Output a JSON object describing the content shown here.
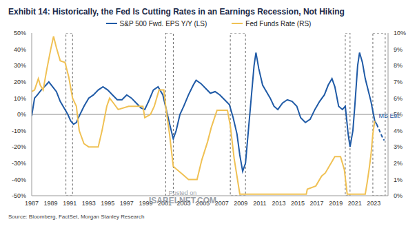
{
  "chart_data": {
    "type": "line",
    "title": "Exhibit 14:  Historically, the Fed Is Cutting Rates in an Earnings Recession, Not Hiking",
    "source": "Source: Bloomberg, FactSet, Morgan Stanley Research",
    "watermark": [
      "Posted on",
      "ISABELNET.COM"
    ],
    "xlim": [
      1987,
      2024.5
    ],
    "xticks": [
      1987,
      1989,
      1991,
      1993,
      1995,
      1997,
      1999,
      2001,
      2003,
      2005,
      2007,
      2009,
      2011,
      2013,
      2015,
      2017,
      2019,
      2021,
      2023
    ],
    "ylim": [
      -50,
      50
    ],
    "yticks": [
      {
        "value": -50,
        "label": "-50%"
      },
      {
        "value": -40,
        "label": "-40%"
      },
      {
        "value": -30,
        "label": "-30%"
      },
      {
        "value": -20,
        "label": "-20%"
      },
      {
        "value": -10,
        "label": "-10%"
      },
      {
        "value": 0,
        "label": "0%"
      },
      {
        "value": 10,
        "label": "10%"
      },
      {
        "value": 20,
        "label": "20%"
      },
      {
        "value": 30,
        "label": "30%"
      },
      {
        "value": 40,
        "label": "40%"
      },
      {
        "value": 50,
        "label": "50%"
      }
    ],
    "y2lim": [
      0,
      10
    ],
    "y2ticks": [
      {
        "value": 0,
        "label": "0%"
      },
      {
        "value": 1,
        "label": "1%"
      },
      {
        "value": 2,
        "label": "2%"
      },
      {
        "value": 3,
        "label": "3%"
      },
      {
        "value": 4,
        "label": "4%"
      },
      {
        "value": 5,
        "label": "5%"
      },
      {
        "value": 6,
        "label": "6%"
      },
      {
        "value": 7,
        "label": "7%"
      },
      {
        "value": 8,
        "label": "8%"
      },
      {
        "value": 9,
        "label": "9%"
      },
      {
        "value": 10,
        "label": "10%"
      }
    ],
    "grid": false,
    "legend": "top",
    "zero_line": 0,
    "periods": [
      [
        1990.6,
        1991.3
      ],
      [
        2001.1,
        2001.9
      ],
      [
        2007.9,
        2009.5
      ],
      [
        2020.0,
        2020.5
      ],
      [
        2022.9,
        2024.2
      ]
    ],
    "series": [
      {
        "name": "S&P 500 Fwd. EPS Y/Y (LS)",
        "color": "#1f5aa6",
        "line_style": "solid",
        "x": [
          1987.0,
          1987.3,
          1987.6,
          1988.0,
          1988.5,
          1988.8,
          1989.2,
          1989.6,
          1990.0,
          1990.4,
          1990.8,
          1991.1,
          1991.4,
          1991.7,
          1992.0,
          1992.5,
          1993.0,
          1993.5,
          1994.0,
          1994.5,
          1995.0,
          1995.5,
          1996.0,
          1996.5,
          1997.0,
          1997.5,
          1998.0,
          1998.5,
          1998.9,
          1999.3,
          1999.8,
          2000.3,
          2000.8,
          2001.2,
          2001.6,
          2001.9,
          2002.2,
          2002.6,
          2003.0,
          2003.5,
          2004.0,
          2004.3,
          2004.8,
          2005.3,
          2005.8,
          2006.3,
          2006.8,
          2007.3,
          2007.8,
          2008.2,
          2008.6,
          2008.9,
          2009.2,
          2009.5,
          2009.8,
          2010.1,
          2010.4,
          2010.6,
          2010.9,
          2011.3,
          2011.7,
          2012.1,
          2012.5,
          2012.9,
          2013.4,
          2013.9,
          2014.4,
          2014.9,
          2015.3,
          2015.8,
          2016.3,
          2016.8,
          2017.3,
          2017.8,
          2018.2,
          2018.6,
          2018.9,
          2019.3,
          2019.7,
          2020.0,
          2020.3,
          2020.5,
          2020.8,
          2021.0,
          2021.3,
          2021.5,
          2021.8,
          2022.1,
          2022.4,
          2022.7,
          2022.9,
          2023.1,
          2023.3
        ],
        "values": [
          -1,
          10,
          12,
          15,
          18,
          20,
          17,
          14,
          8,
          4,
          0,
          -4,
          -6,
          -5,
          -1,
          5,
          10,
          12,
          15,
          17,
          15,
          12,
          9,
          9,
          12,
          10,
          7,
          4,
          3,
          8,
          15,
          17,
          12,
          2,
          -8,
          -15,
          -10,
          0,
          5,
          12,
          18,
          21,
          19,
          16,
          13,
          14,
          12,
          9,
          6,
          -2,
          -12,
          -25,
          -35,
          -30,
          -10,
          10,
          30,
          38,
          28,
          18,
          14,
          10,
          5,
          3,
          7,
          9,
          8,
          5,
          -2,
          -5,
          -3,
          3,
          8,
          12,
          18,
          22,
          17,
          5,
          3,
          5,
          -12,
          -20,
          -10,
          5,
          30,
          38,
          32,
          22,
          15,
          8,
          2,
          -4,
          -6
        ]
      },
      {
        "name": "Fed Funds Rate (RS)",
        "color": "#f0c154",
        "line_style": "solid",
        "axis": "y2",
        "x": [
          1987.0,
          1987.3,
          1987.7,
          1987.9,
          1988.2,
          1988.6,
          1989.0,
          1989.3,
          1989.6,
          1990.0,
          1990.5,
          1990.9,
          1991.3,
          1991.7,
          1992.0,
          1992.5,
          1993.0,
          1994.0,
          1994.4,
          1994.9,
          1995.2,
          1995.6,
          1996.1,
          1997.2,
          1998.7,
          1998.9,
          1999.5,
          1999.9,
          2000.4,
          2000.9,
          2001.1,
          2001.5,
          2001.9,
          2002.9,
          2003.5,
          2004.4,
          2004.9,
          2005.5,
          2005.9,
          2006.5,
          2007.6,
          2007.9,
          2008.3,
          2008.9,
          2015.9,
          2016.0,
          2016.9,
          2017.5,
          2017.9,
          2018.5,
          2018.9,
          2019.5,
          2019.9,
          2020.2,
          2022.1,
          2022.3,
          2022.5,
          2022.7,
          2022.9,
          2023.1
        ],
        "values": [
          6.4,
          6.5,
          7.2,
          6.8,
          6.5,
          7.8,
          9.0,
          9.8,
          9.1,
          8.3,
          8.2,
          7.3,
          6.0,
          5.5,
          4.0,
          3.2,
          3.0,
          3.0,
          4.0,
          5.5,
          6.0,
          5.7,
          5.3,
          5.5,
          5.5,
          4.8,
          5.0,
          5.5,
          6.5,
          6.5,
          5.5,
          3.8,
          1.8,
          1.3,
          1.0,
          1.0,
          2.2,
          3.3,
          4.2,
          5.25,
          5.25,
          4.3,
          2.3,
          0.1,
          0.1,
          0.4,
          0.6,
          1.2,
          1.4,
          2.0,
          2.4,
          2.4,
          1.6,
          0.1,
          0.1,
          0.8,
          1.6,
          2.5,
          3.8,
          4.6
        ]
      },
      {
        "name": "MS Est.",
        "color": "#1f5aa6",
        "line_style": "dashed",
        "x": [
          2023.3,
          2023.6,
          2023.9,
          2024.1
        ],
        "values": [
          -6,
          -10,
          -14,
          -16
        ]
      }
    ]
  }
}
